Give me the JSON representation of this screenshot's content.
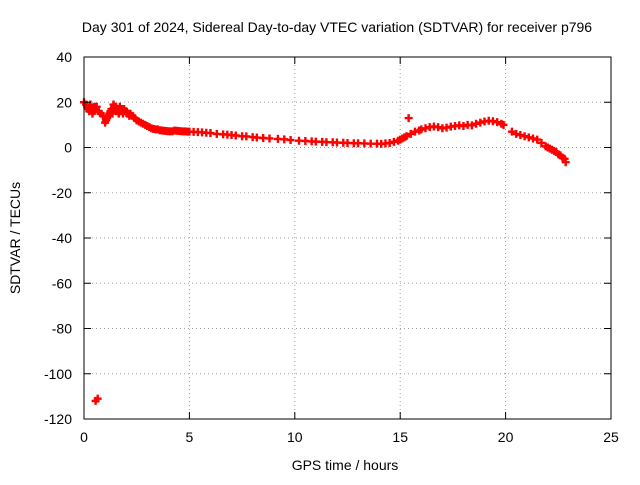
{
  "chart_data": {
    "type": "scatter",
    "title": "Day 301 of 2024, Sidereal Day-to-day VTEC variation (SDTVAR) for receiver p796",
    "xlabel": "GPS time / hours",
    "ylabel": "SDTVAR / TECUs",
    "xlim": [
      0,
      25
    ],
    "ylim": [
      -120,
      40
    ],
    "xticks": [
      0,
      5,
      10,
      15,
      20,
      25
    ],
    "yticks": [
      40,
      20,
      0,
      -20,
      -40,
      -60,
      -80,
      -100,
      -120
    ],
    "grid": true,
    "marker": "+",
    "series": [
      {
        "name": "SDTVAR",
        "color": "#ff0000",
        "points": [
          [
            0.0,
            20
          ],
          [
            0.1,
            19
          ],
          [
            0.15,
            18
          ],
          [
            0.2,
            17
          ],
          [
            0.25,
            16
          ],
          [
            0.3,
            19
          ],
          [
            0.35,
            17
          ],
          [
            0.4,
            15
          ],
          [
            0.45,
            16
          ],
          [
            0.5,
            18
          ],
          [
            0.55,
            17
          ],
          [
            0.6,
            18
          ],
          [
            0.7,
            16
          ],
          [
            0.8,
            15
          ],
          [
            0.9,
            14
          ],
          [
            1.0,
            11
          ],
          [
            1.05,
            12
          ],
          [
            1.1,
            13
          ],
          [
            1.15,
            14
          ],
          [
            1.2,
            15
          ],
          [
            1.25,
            16
          ],
          [
            1.3,
            17
          ],
          [
            1.35,
            15
          ],
          [
            1.4,
            19
          ],
          [
            1.45,
            18
          ],
          [
            1.5,
            18
          ],
          [
            1.55,
            16
          ],
          [
            1.6,
            17
          ],
          [
            1.65,
            15
          ],
          [
            1.7,
            18
          ],
          [
            1.75,
            16
          ],
          [
            1.8,
            17
          ],
          [
            1.85,
            15
          ],
          [
            1.9,
            17
          ],
          [
            1.95,
            16
          ],
          [
            2.0,
            16
          ],
          [
            2.05,
            15
          ],
          [
            2.1,
            15
          ],
          [
            2.15,
            14
          ],
          [
            2.2,
            15
          ],
          [
            2.3,
            14
          ],
          [
            2.4,
            13
          ],
          [
            2.5,
            12
          ],
          [
            2.6,
            11.5
          ],
          [
            2.7,
            11
          ],
          [
            2.8,
            10.5
          ],
          [
            2.9,
            10
          ],
          [
            3.0,
            9.5
          ],
          [
            3.1,
            9
          ],
          [
            3.2,
            8.5
          ],
          [
            3.3,
            8.2
          ],
          [
            3.4,
            8
          ],
          [
            3.5,
            8
          ],
          [
            3.6,
            7.6
          ],
          [
            3.7,
            7.5
          ],
          [
            3.8,
            7.4
          ],
          [
            3.9,
            7.3
          ],
          [
            4.0,
            7.2
          ],
          [
            4.1,
            7.1
          ],
          [
            4.2,
            7.2
          ],
          [
            4.3,
            7.5
          ],
          [
            4.4,
            7.4
          ],
          [
            4.5,
            7.3
          ],
          [
            4.6,
            7.2
          ],
          [
            4.7,
            7.1
          ],
          [
            4.8,
            7.1
          ],
          [
            4.9,
            7.0
          ],
          [
            5.0,
            7.0
          ],
          [
            5.2,
            6.9
          ],
          [
            5.4,
            6.8
          ],
          [
            5.6,
            6.7
          ],
          [
            5.8,
            6.5
          ],
          [
            6.0,
            6.4
          ],
          [
            6.3,
            6.0
          ],
          [
            6.6,
            5.8
          ],
          [
            6.8,
            5.7
          ],
          [
            7.0,
            5.5
          ],
          [
            7.2,
            5.3
          ],
          [
            7.5,
            5.0
          ],
          [
            7.7,
            4.9
          ],
          [
            8.0,
            4.6
          ],
          [
            8.2,
            4.4
          ],
          [
            8.5,
            4.2
          ],
          [
            8.8,
            4.0
          ],
          [
            9.2,
            3.8
          ],
          [
            9.5,
            3.6
          ],
          [
            9.8,
            3.3
          ],
          [
            10.2,
            3.0
          ],
          [
            10.5,
            2.9
          ],
          [
            10.8,
            2.7
          ],
          [
            11.0,
            2.6
          ],
          [
            11.3,
            2.5
          ],
          [
            11.5,
            2.4
          ],
          [
            11.8,
            2.3
          ],
          [
            12.0,
            2.2
          ],
          [
            12.3,
            2.1
          ],
          [
            12.5,
            2.0
          ],
          [
            12.8,
            1.9
          ],
          [
            13.0,
            1.9
          ],
          [
            13.3,
            1.8
          ],
          [
            13.6,
            1.7
          ],
          [
            13.9,
            1.7
          ],
          [
            14.1,
            1.6
          ],
          [
            14.3,
            1.8
          ],
          [
            14.5,
            2.0
          ],
          [
            14.7,
            2.5
          ],
          [
            14.9,
            3.0
          ],
          [
            15.0,
            3.5
          ],
          [
            15.1,
            4.0
          ],
          [
            15.2,
            4.5
          ],
          [
            15.3,
            5.0
          ],
          [
            15.4,
            13.0
          ],
          [
            15.5,
            6.0
          ],
          [
            15.7,
            7.0
          ],
          [
            15.9,
            7.5
          ],
          [
            16.0,
            8.0
          ],
          [
            16.2,
            8.5
          ],
          [
            16.4,
            9.0
          ],
          [
            16.6,
            9.3
          ],
          [
            16.8,
            9.0
          ],
          [
            17.0,
            8.5
          ],
          [
            17.2,
            8.8
          ],
          [
            17.4,
            9.2
          ],
          [
            17.6,
            9.5
          ],
          [
            17.8,
            9.8
          ],
          [
            18.0,
            9.5
          ],
          [
            18.2,
            10.0
          ],
          [
            18.4,
            9.8
          ],
          [
            18.6,
            10.5
          ],
          [
            18.8,
            11.0
          ],
          [
            19.0,
            11.5
          ],
          [
            19.2,
            11.8
          ],
          [
            19.4,
            11.6
          ],
          [
            19.6,
            11.2
          ],
          [
            19.8,
            10.5
          ],
          [
            19.9,
            10.0
          ],
          [
            20.3,
            7.0
          ],
          [
            20.5,
            6.0
          ],
          [
            20.7,
            5.5
          ],
          [
            20.9,
            5.0
          ],
          [
            21.1,
            4.5
          ],
          [
            21.3,
            4.0
          ],
          [
            21.5,
            3.5
          ],
          [
            21.7,
            2.0
          ],
          [
            21.9,
            0.5
          ],
          [
            22.0,
            0.0
          ],
          [
            22.1,
            -0.5
          ],
          [
            22.2,
            -1.0
          ],
          [
            22.3,
            -1.5
          ],
          [
            22.4,
            -2.0
          ],
          [
            22.5,
            -3.0
          ],
          [
            22.6,
            -3.5
          ],
          [
            22.7,
            -4.5
          ],
          [
            22.8,
            -5.0
          ],
          [
            22.85,
            -6.5
          ],
          [
            0.55,
            -112
          ],
          [
            0.65,
            -111
          ]
        ]
      }
    ]
  }
}
